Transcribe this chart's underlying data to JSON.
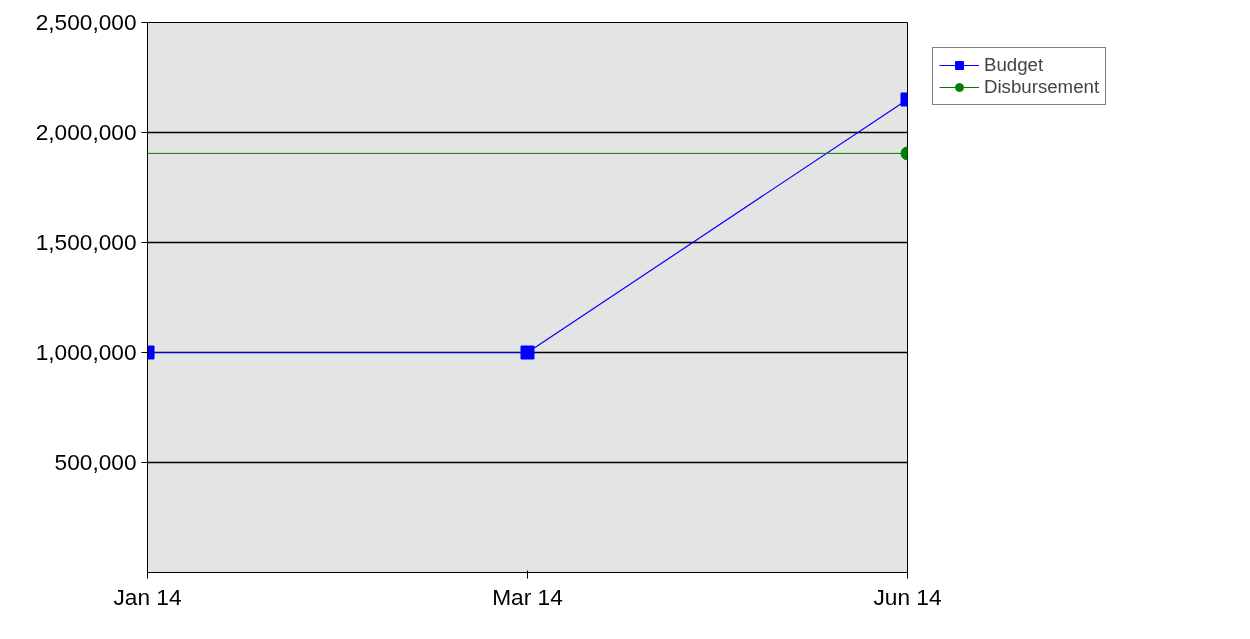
{
  "chart_data": {
    "type": "line",
    "categories": [
      "Jan 14",
      "Mar 14",
      "Jun 14"
    ],
    "series": [
      {
        "name": "Budget",
        "color": "#0000ff",
        "values": [
          1000000,
          1000000,
          2150000
        ],
        "marker": "square"
      },
      {
        "name": "Disbursement",
        "color": "#008000",
        "values": [
          null,
          null,
          1905000
        ],
        "marker": "circle"
      }
    ],
    "ref_lines": [
      {
        "axis": "y",
        "value": 1905000,
        "label": null,
        "color": "#008000"
      }
    ],
    "ylim": [
      0,
      2500000
    ],
    "yticks": [
      {
        "value": 500000,
        "label": "500,000"
      },
      {
        "value": 1000000,
        "label": "1,000,000"
      },
      {
        "value": 1500000,
        "label": "1,500,000"
      },
      {
        "value": 2000000,
        "label": "2,000,000"
      },
      {
        "value": 2500000,
        "label": "2,500,000"
      }
    ],
    "grid": "y",
    "legend": "top right"
  }
}
